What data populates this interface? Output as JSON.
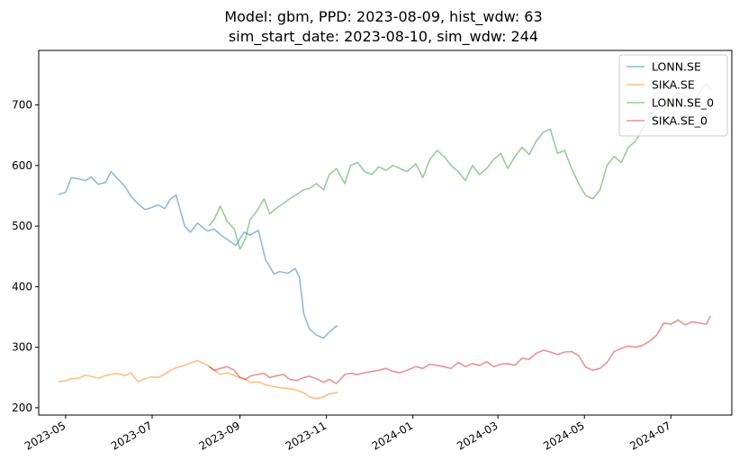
{
  "chart_data": {
    "type": "line",
    "title_lines": [
      "Model: gbm, PPD: 2023-08-09, hist_wdw: 63",
      "sim_start_date: 2023-08-10, sim_wdw: 244"
    ],
    "xlabel": "",
    "ylabel": "",
    "x_range": [
      "2023-04-12",
      "2024-08-13"
    ],
    "y_range": [
      188,
      790
    ],
    "x_ticks": [
      "2023-05",
      "2023-07",
      "2023-09",
      "2023-11",
      "2024-01",
      "2024-03",
      "2024-05",
      "2024-07"
    ],
    "y_ticks": [
      200,
      300,
      400,
      500,
      600,
      700
    ],
    "grid": false,
    "legend_position": "top-right",
    "series": [
      {
        "name": "LONN.SE",
        "color": "#1f77b4",
        "x": [
          "2023-04-26",
          "2023-05-01",
          "2023-05-05",
          "2023-05-10",
          "2023-05-15",
          "2023-05-19",
          "2023-05-24",
          "2023-05-29",
          "2023-06-02",
          "2023-06-06",
          "2023-06-12",
          "2023-06-16",
          "2023-06-21",
          "2023-06-26",
          "2023-06-30",
          "2023-07-05",
          "2023-07-10",
          "2023-07-14",
          "2023-07-18",
          "2023-07-24",
          "2023-07-28",
          "2023-08-02",
          "2023-08-09",
          "2023-08-14",
          "2023-08-18",
          "2023-08-23",
          "2023-08-29",
          "2023-09-04",
          "2023-09-08",
          "2023-09-14",
          "2023-09-19",
          "2023-09-25",
          "2023-09-29",
          "2023-10-05",
          "2023-10-10",
          "2023-10-13",
          "2023-10-16",
          "2023-10-20",
          "2023-10-25",
          "2023-10-30",
          "2023-11-03",
          "2023-11-08",
          "2023-11-09"
        ],
        "y": [
          552,
          556,
          580,
          578,
          575,
          581,
          569,
          572,
          590,
          580,
          565,
          549,
          537,
          527,
          530,
          535,
          529,
          545,
          551,
          500,
          490,
          505,
          492,
          495,
          486,
          478,
          468,
          490,
          485,
          493,
          445,
          421,
          425,
          422,
          430,
          415,
          355,
          330,
          320,
          315,
          325,
          335,
          334
        ]
      },
      {
        "name": "SIKA.SE",
        "color": "#ff7f0e",
        "x": [
          "2023-04-26",
          "2023-05-01",
          "2023-05-05",
          "2023-05-10",
          "2023-05-15",
          "2023-05-19",
          "2023-05-24",
          "2023-05-29",
          "2023-06-02",
          "2023-06-06",
          "2023-06-12",
          "2023-06-16",
          "2023-06-21",
          "2023-06-26",
          "2023-06-30",
          "2023-07-05",
          "2023-07-10",
          "2023-07-14",
          "2023-07-18",
          "2023-07-24",
          "2023-07-28",
          "2023-08-02",
          "2023-08-09",
          "2023-08-14",
          "2023-08-18",
          "2023-08-23",
          "2023-08-29",
          "2023-09-04",
          "2023-09-08",
          "2023-09-14",
          "2023-09-19",
          "2023-09-25",
          "2023-09-29",
          "2023-10-05",
          "2023-10-10",
          "2023-10-16",
          "2023-10-20",
          "2023-10-25",
          "2023-10-30",
          "2023-11-03",
          "2023-11-08",
          "2023-11-09"
        ],
        "y": [
          243,
          245,
          248,
          249,
          254,
          252,
          249,
          253,
          255,
          257,
          253,
          258,
          243,
          248,
          251,
          250,
          256,
          262,
          266,
          270,
          274,
          278,
          270,
          262,
          255,
          258,
          252,
          248,
          242,
          243,
          238,
          235,
          233,
          232,
          230,
          225,
          218,
          215,
          218,
          223,
          225,
          226
        ]
      },
      {
        "name": "LONN.SE_0",
        "color": "#2ca02c",
        "x": [
          "2023-08-10",
          "2023-08-14",
          "2023-08-18",
          "2023-08-23",
          "2023-08-28",
          "2023-09-01",
          "2023-09-05",
          "2023-09-08",
          "2023-09-13",
          "2023-09-18",
          "2023-09-22",
          "2023-09-27",
          "2023-10-02",
          "2023-10-06",
          "2023-10-11",
          "2023-10-16",
          "2023-10-20",
          "2023-10-25",
          "2023-10-30",
          "2023-11-03",
          "2023-11-08",
          "2023-11-14",
          "2023-11-18",
          "2023-11-23",
          "2023-11-28",
          "2023-12-03",
          "2023-12-08",
          "2023-12-13",
          "2023-12-18",
          "2023-12-23",
          "2023-12-28",
          "2024-01-03",
          "2024-01-08",
          "2024-01-13",
          "2024-01-18",
          "2024-01-23",
          "2024-01-28",
          "2024-02-02",
          "2024-02-07",
          "2024-02-12",
          "2024-02-17",
          "2024-02-22",
          "2024-02-27",
          "2024-03-03",
          "2024-03-08",
          "2024-03-13",
          "2024-03-18",
          "2024-03-23",
          "2024-03-28",
          "2024-04-02",
          "2024-04-07",
          "2024-04-12",
          "2024-04-17",
          "2024-04-22",
          "2024-04-27",
          "2024-05-02",
          "2024-05-07",
          "2024-05-12",
          "2024-05-17",
          "2024-05-22",
          "2024-05-27",
          "2024-06-01",
          "2024-06-06",
          "2024-06-11",
          "2024-06-16",
          "2024-06-21",
          "2024-06-26",
          "2024-07-01",
          "2024-07-06",
          "2024-07-11",
          "2024-07-16",
          "2024-07-21",
          "2024-07-26",
          "2024-07-29"
        ],
        "y": [
          500,
          512,
          533,
          508,
          495,
          462,
          480,
          510,
          525,
          545,
          520,
          530,
          538,
          545,
          552,
          560,
          562,
          570,
          560,
          585,
          595,
          570,
          600,
          605,
          590,
          585,
          598,
          592,
          600,
          595,
          590,
          603,
          580,
          610,
          625,
          615,
          600,
          590,
          575,
          600,
          585,
          595,
          610,
          620,
          595,
          615,
          630,
          618,
          640,
          655,
          660,
          620,
          625,
          595,
          570,
          550,
          545,
          560,
          600,
          615,
          605,
          630,
          640,
          660,
          680,
          700,
          690,
          710,
          720,
          715,
          700,
          720,
          735,
          725
        ],
        "clipped_by_legend": true
      },
      {
        "name": "SIKA.SE_0",
        "color": "#d62728",
        "x": [
          "2023-08-10",
          "2023-08-14",
          "2023-08-18",
          "2023-08-23",
          "2023-08-28",
          "2023-09-01",
          "2023-09-05",
          "2023-09-08",
          "2023-09-13",
          "2023-09-18",
          "2023-09-22",
          "2023-09-27",
          "2023-10-02",
          "2023-10-06",
          "2023-10-11",
          "2023-10-16",
          "2023-10-20",
          "2023-10-25",
          "2023-10-30",
          "2023-11-03",
          "2023-11-08",
          "2023-11-14",
          "2023-11-18",
          "2023-11-23",
          "2023-11-28",
          "2023-12-03",
          "2023-12-08",
          "2023-12-13",
          "2023-12-18",
          "2023-12-23",
          "2023-12-28",
          "2024-01-03",
          "2024-01-08",
          "2024-01-13",
          "2024-01-18",
          "2024-01-23",
          "2024-01-28",
          "2024-02-02",
          "2024-02-07",
          "2024-02-12",
          "2024-02-17",
          "2024-02-22",
          "2024-02-27",
          "2024-03-03",
          "2024-03-08",
          "2024-03-13",
          "2024-03-18",
          "2024-03-23",
          "2024-03-28",
          "2024-04-02",
          "2024-04-07",
          "2024-04-12",
          "2024-04-17",
          "2024-04-22",
          "2024-04-27",
          "2024-05-02",
          "2024-05-07",
          "2024-05-12",
          "2024-05-17",
          "2024-05-22",
          "2024-05-27",
          "2024-06-01",
          "2024-06-06",
          "2024-06-11",
          "2024-06-16",
          "2024-06-21",
          "2024-06-26",
          "2024-07-01",
          "2024-07-06",
          "2024-07-11",
          "2024-07-16",
          "2024-07-21",
          "2024-07-26",
          "2024-07-29"
        ],
        "y": [
          268,
          262,
          265,
          268,
          262,
          250,
          247,
          252,
          255,
          257,
          250,
          253,
          255,
          247,
          245,
          250,
          252,
          248,
          242,
          247,
          240,
          255,
          257,
          255,
          258,
          260,
          262,
          265,
          260,
          258,
          262,
          268,
          265,
          272,
          270,
          268,
          265,
          275,
          268,
          273,
          270,
          276,
          268,
          272,
          273,
          270,
          282,
          280,
          290,
          295,
          292,
          288,
          292,
          293,
          286,
          267,
          262,
          265,
          275,
          293,
          298,
          302,
          300,
          303,
          310,
          320,
          340,
          338,
          345,
          337,
          342,
          340,
          338,
          352
        ]
      }
    ]
  }
}
